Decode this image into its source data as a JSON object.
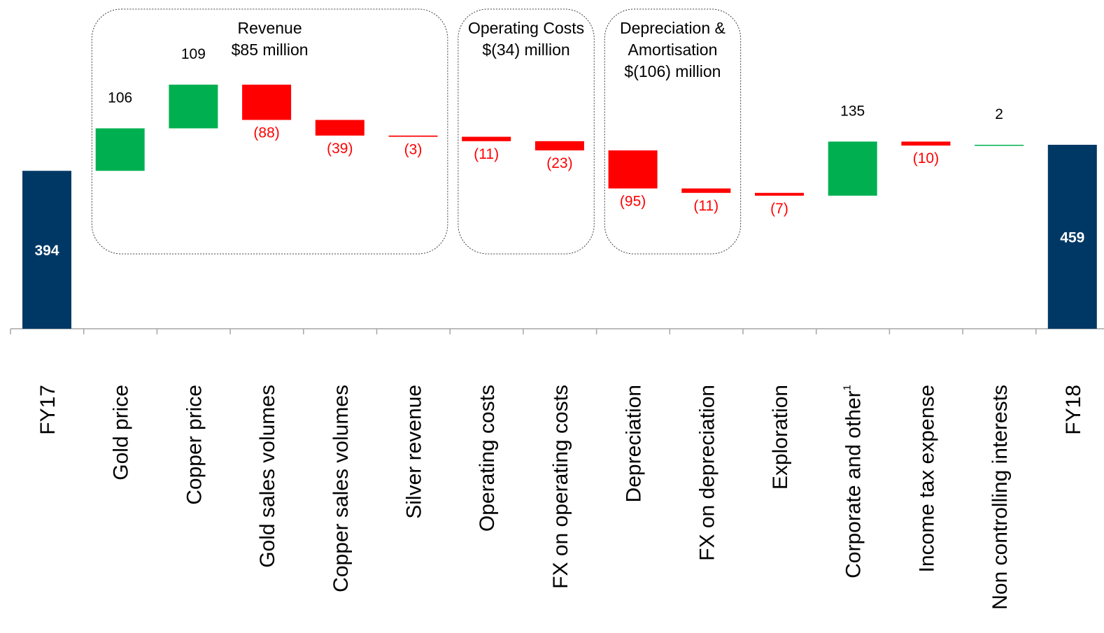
{
  "chart_data": {
    "type": "waterfall",
    "categories": [
      "FY17",
      "Gold price",
      "Copper price",
      "Gold sales volumes",
      "Copper sales volumes",
      "Silver revenue",
      "Operating costs",
      "FX on operating costs",
      "Depreciation",
      "FX on depreciation",
      "Exploration",
      "Corporate and other",
      "Income tax expense",
      "Non controlling interests",
      "FY18"
    ],
    "footnote_marker": "1",
    "footnote_marker_category_index": 11,
    "values": [
      394,
      106,
      109,
      -88,
      -39,
      -3,
      -11,
      -23,
      -95,
      -11,
      -7,
      135,
      -10,
      2,
      459
    ],
    "labels": [
      "394",
      "106",
      "109",
      "(88)",
      "(39)",
      "(3)",
      "(11)",
      "(23)",
      "(95)",
      "(11)",
      "(7)",
      "135",
      "(10)",
      "2",
      "459"
    ],
    "bar_kinds": [
      "total",
      "delta",
      "delta",
      "delta",
      "delta",
      "delta",
      "delta",
      "delta",
      "delta",
      "delta",
      "delta",
      "delta",
      "delta",
      "delta",
      "total"
    ],
    "groups": [
      {
        "lines": [
          "Revenue",
          "$85 million"
        ],
        "start_index": 1,
        "end_index": 5
      },
      {
        "lines": [
          "Operating Costs",
          "$(34) million"
        ],
        "start_index": 6,
        "end_index": 7
      },
      {
        "lines": [
          "Depreciation &",
          "Amortisation",
          "$(106) million"
        ],
        "start_index": 8,
        "end_index": 9
      }
    ],
    "colors": {
      "total": "#003865",
      "increase": "#00b050",
      "decrease": "#ff0000",
      "increase_label": "#000000",
      "decrease_label": "#ff0000"
    },
    "grid": false,
    "legend": "none"
  }
}
